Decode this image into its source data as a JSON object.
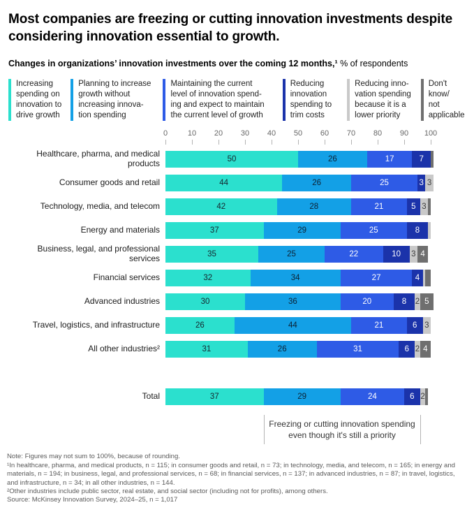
{
  "page": {
    "title": "Most companies are freezing or cutting innovation investments despite considering innovation essential to growth.",
    "subtitle_bold": "Changes in organizations’ innovation investments over the coming 12 months,¹",
    "subtitle_rest": " % of respondents"
  },
  "legend": {
    "items": [
      {
        "label": "Increasing\nspending on\ninnovation to\ndrive growth",
        "color": "#2BE0CE"
      },
      {
        "label": "Planning to increase\ngrowth without\nincreasing innova-\ntion spending",
        "color": "#13A0E6"
      },
      {
        "label": "Maintaining the current\nlevel of innovation spend-\ning and expect to maintain\nthe current level of growth",
        "color": "#2E5BE6"
      },
      {
        "label": "Reducing\ninnovation\nspending to\ntrim costs",
        "color": "#1B33AA"
      },
      {
        "label": "Reducing inno-\nvation spending\nbecause it is a\nlower priority",
        "color": "#C9C9C9"
      },
      {
        "label": "Don't\nknow/\nnot\napplicable",
        "color": "#6F6F6F"
      }
    ]
  },
  "chart_data": {
    "type": "bar",
    "orientation": "horizontal",
    "stacked": true,
    "title": "Changes in organizations' innovation investments over the coming 12 months, % of respondents",
    "axis": {
      "min": 0,
      "max": 100,
      "ticks": [
        0,
        10,
        20,
        30,
        40,
        50,
        60,
        70,
        80,
        90,
        100
      ]
    },
    "categories": [
      "Healthcare, pharma, and medical products",
      "Consumer goods and retail",
      "Technology, media, and telecom",
      "Energy and materials",
      "Business, legal, and professional services",
      "Financial services",
      "Advanced industries",
      "Travel, logistics, and infrastructure",
      "All other industries²",
      "Total"
    ],
    "series": [
      {
        "name": "Increasing spending on innovation to drive growth",
        "color": "#2BE0CE",
        "label_color": "#15262e",
        "values": [
          50,
          44,
          42,
          37,
          35,
          32,
          30,
          26,
          31,
          37
        ],
        "labels": [
          "50",
          "44",
          "42",
          "37",
          "35",
          "32",
          "30",
          "26",
          "31",
          "37"
        ]
      },
      {
        "name": "Planning to increase growth without increasing innovation spending",
        "color": "#13A0E6",
        "label_color": "#0d2133",
        "values": [
          26,
          26,
          28,
          29,
          25,
          34,
          36,
          44,
          26,
          29
        ],
        "labels": [
          "26",
          "26",
          "28",
          "29",
          "25",
          "34",
          "36",
          "44",
          "26",
          "29"
        ]
      },
      {
        "name": "Maintaining the current level of innovation spending and expect to maintain the current level of growth",
        "color": "#2E5BE6",
        "label_color": "#ffffff",
        "values": [
          17,
          25,
          21,
          25,
          22,
          27,
          20,
          21,
          31,
          24
        ],
        "labels": [
          "17",
          "25",
          "21",
          "25",
          "22",
          "27",
          "20",
          "21",
          "31",
          "24"
        ]
      },
      {
        "name": "Reducing innovation spending to trim costs",
        "color": "#1B33AA",
        "label_color": "#ffffff",
        "values": [
          7,
          3,
          5,
          8,
          10,
          4,
          8,
          6,
          6,
          6
        ],
        "labels": [
          "7",
          "3",
          "5",
          "8",
          "10",
          "4",
          "8",
          "6",
          "6",
          "6"
        ]
      },
      {
        "name": "Reducing innovation spending because it is a lower priority",
        "color": "#C9C9C9",
        "label_color": "#3c3c3c",
        "values": [
          0,
          3,
          3,
          1,
          3,
          1,
          2,
          3,
          2,
          2
        ],
        "labels": [
          "",
          "3",
          "3",
          "",
          "3",
          "",
          "2",
          "3",
          "2",
          "2"
        ]
      },
      {
        "name": "Don't know/not applicable",
        "color": "#6F6F6F",
        "label_color": "#ffffff",
        "values": [
          1,
          0,
          1,
          0,
          4,
          2,
          5,
          0,
          4,
          1
        ],
        "labels": [
          "",
          "",
          "",
          "",
          "4",
          "",
          "5",
          "",
          "4",
          ""
        ]
      }
    ]
  },
  "annotation": {
    "text": "Freezing or cutting innovation spending\neven though it's still a priority",
    "span_pct": [
      37,
      96
    ]
  },
  "footnotes": [
    "Note: Figures may not sum to 100%, because of rounding.",
    "¹In healthcare, pharma, and medical products, n = 115; in consumer goods and retail, n = 73; in technology, media, and telecom, n = 165; in energy and materials, n = 194; in business, legal, and professional services, n = 68; in financial services, n = 137; in advanced industries, n = 87; in travel, logistics, and infrastructure, n = 34; in all other industries, n = 144.",
    "²Other industries include public sector, real estate, and social sector (including not for profits), among others.",
    "Source: McKinsey Innovation Survey, 2024–25, n = 1,017"
  ]
}
